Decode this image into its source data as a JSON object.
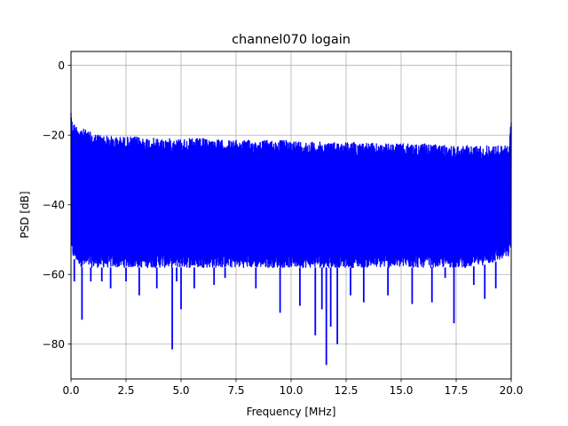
{
  "chart_data": {
    "type": "line",
    "title": "channel070 logain",
    "xlabel": "Frequency [MHz]",
    "ylabel": "PSD [dB]",
    "xlim": [
      0,
      20
    ],
    "ylim": [
      -90,
      4
    ],
    "xticks": [
      0,
      2.5,
      5,
      7.5,
      10,
      12.5,
      15,
      17.5,
      20
    ],
    "xtick_labels": [
      "0.0",
      "2.5",
      "5.0",
      "7.5",
      "10.0",
      "12.5",
      "15.0",
      "17.5",
      "20.0"
    ],
    "yticks": [
      -80,
      -60,
      -40,
      -20,
      0
    ],
    "ytick_labels": [
      "−80",
      "−60",
      "−40",
      "−20",
      "0"
    ],
    "grid": true,
    "series": [
      {
        "color": "#0000ff",
        "envelope": {
          "x": [
            0,
            0.05,
            0.2,
            0.5,
            1,
            2,
            3,
            4,
            5,
            6,
            7,
            8,
            9,
            10,
            11,
            12,
            13,
            14,
            15,
            16,
            17,
            18,
            19,
            19.9,
            20
          ],
          "upper": [
            -11,
            -16,
            -17,
            -18,
            -19.5,
            -20.5,
            -20.5,
            -21,
            -21,
            -21,
            -21.5,
            -21.5,
            -21.5,
            -21.5,
            -22,
            -22,
            -22,
            -22.5,
            -22.5,
            -22.5,
            -23,
            -23,
            -23,
            -23,
            -15
          ],
          "lower": [
            -52,
            -55,
            -56,
            -58,
            -58,
            -58,
            -58,
            -58,
            -58,
            -58,
            -58,
            -58,
            -58,
            -58,
            -58,
            -58,
            -58,
            -58,
            -58,
            -58,
            -58,
            -58,
            -57,
            -55,
            -52
          ]
        },
        "dips": [
          {
            "x": 0.15,
            "y": -62
          },
          {
            "x": 0.5,
            "y": -73
          },
          {
            "x": 0.9,
            "y": -62
          },
          {
            "x": 1.4,
            "y": -62
          },
          {
            "x": 1.8,
            "y": -64
          },
          {
            "x": 2.5,
            "y": -62
          },
          {
            "x": 3.1,
            "y": -66
          },
          {
            "x": 3.9,
            "y": -64
          },
          {
            "x": 4.6,
            "y": -81.5
          },
          {
            "x": 4.8,
            "y": -62
          },
          {
            "x": 5,
            "y": -70
          },
          {
            "x": 5.6,
            "y": -64
          },
          {
            "x": 6.5,
            "y": -63
          },
          {
            "x": 7,
            "y": -61
          },
          {
            "x": 8.4,
            "y": -64
          },
          {
            "x": 9.5,
            "y": -71
          },
          {
            "x": 10.4,
            "y": -69
          },
          {
            "x": 11.1,
            "y": -77.5
          },
          {
            "x": 11.4,
            "y": -70
          },
          {
            "x": 11.6,
            "y": -86
          },
          {
            "x": 11.8,
            "y": -75
          },
          {
            "x": 12.1,
            "y": -80
          },
          {
            "x": 12.7,
            "y": -66
          },
          {
            "x": 13.3,
            "y": -68
          },
          {
            "x": 14.4,
            "y": -66
          },
          {
            "x": 15.5,
            "y": -68.5
          },
          {
            "x": 16.4,
            "y": -68
          },
          {
            "x": 17,
            "y": -61
          },
          {
            "x": 17.4,
            "y": -74
          },
          {
            "x": 18.3,
            "y": -63
          },
          {
            "x": 18.8,
            "y": -67
          },
          {
            "x": 19.3,
            "y": -64
          }
        ]
      }
    ]
  }
}
